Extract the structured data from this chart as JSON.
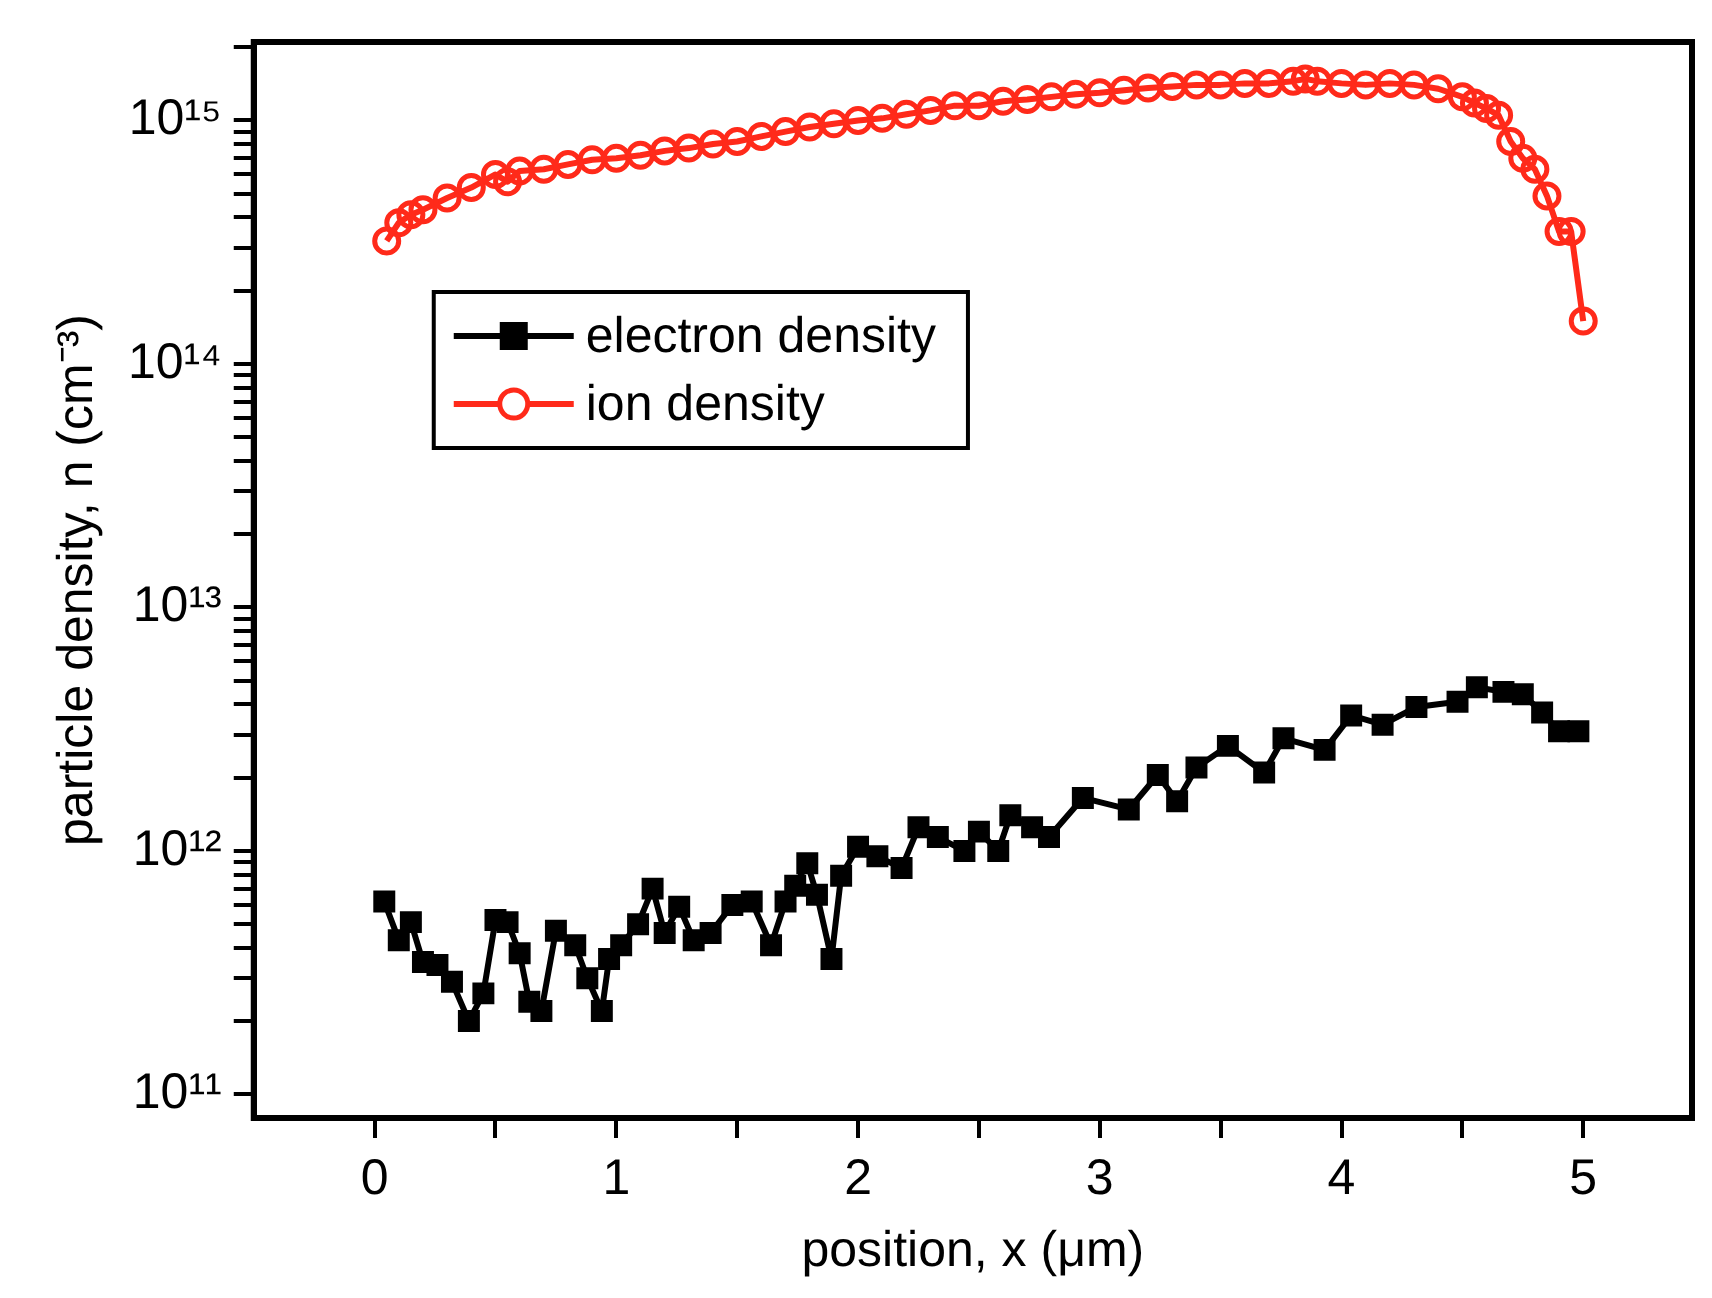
{
  "chart_data": {
    "type": "line",
    "xlabel": "position, x (μm)",
    "ylabel": "particle density, n (cm⁻³)",
    "xlim": [
      -0.5,
      5.45
    ],
    "xticks": [
      0,
      {
        "value": 0.5,
        "label": null
      },
      1,
      {
        "value": 1.5,
        "label": null
      },
      2,
      {
        "value": 2.5,
        "label": null
      },
      3,
      {
        "value": 3.5,
        "label": null
      },
      4,
      {
        "value": 4.5,
        "label": null
      },
      5
    ],
    "ylim": [
      80000000000.0,
      2100000000000000.0
    ],
    "yticks": [
      {
        "value": 100000000000.0,
        "label": "10¹¹"
      },
      {
        "value": 200000000000.0,
        "label": null
      },
      {
        "value": 300000000000.0,
        "label": null
      },
      {
        "value": 400000000000.0,
        "label": null
      },
      {
        "value": 500000000000.0,
        "label": null
      },
      {
        "value": 600000000000.0,
        "label": null
      },
      {
        "value": 700000000000.0,
        "label": null
      },
      {
        "value": 800000000000.0,
        "label": null
      },
      {
        "value": 900000000000.0,
        "label": null
      },
      {
        "value": 1000000000000.0,
        "label": "10¹²"
      },
      {
        "value": 2000000000000.0,
        "label": null
      },
      {
        "value": 3000000000000.0,
        "label": null
      },
      {
        "value": 4000000000000.0,
        "label": null
      },
      {
        "value": 5000000000000.0,
        "label": null
      },
      {
        "value": 6000000000000.0,
        "label": null
      },
      {
        "value": 7000000000000.0,
        "label": null
      },
      {
        "value": 8000000000000.0,
        "label": null
      },
      {
        "value": 9000000000000.0,
        "label": null
      },
      {
        "value": 10000000000000.0,
        "label": "10¹³"
      },
      {
        "value": 20000000000000.0,
        "label": null
      },
      {
        "value": 30000000000000.0,
        "label": null
      },
      {
        "value": 40000000000000.0,
        "label": null
      },
      {
        "value": 50000000000000.0,
        "label": null
      },
      {
        "value": 60000000000000.0,
        "label": null
      },
      {
        "value": 70000000000000.0,
        "label": null
      },
      {
        "value": 80000000000000.0,
        "label": null
      },
      {
        "value": 90000000000000.0,
        "label": null
      },
      {
        "value": 100000000000000.0,
        "label": "10¹⁴"
      },
      {
        "value": 200000000000000.0,
        "label": null
      },
      {
        "value": 300000000000000.0,
        "label": null
      },
      {
        "value": 400000000000000.0,
        "label": null
      },
      {
        "value": 500000000000000.0,
        "label": null
      },
      {
        "value": 600000000000000.0,
        "label": null
      },
      {
        "value": 700000000000000.0,
        "label": null
      },
      {
        "value": 800000000000000.0,
        "label": null
      },
      {
        "value": 900000000000000.0,
        "label": null
      },
      {
        "value": 1000000000000000.0,
        "label": "10¹⁵"
      },
      {
        "value": 2000000000000000.0,
        "label": null
      }
    ],
    "log": "y",
    "grid": false,
    "legend": "top left",
    "line_style": "solid",
    "series": [
      {
        "name": "electron density",
        "color": "#000000",
        "marker": "square",
        "x": [
          0.04,
          0.1,
          0.15,
          0.2,
          0.26,
          0.32,
          0.39,
          0.45,
          0.5,
          0.55,
          0.6,
          0.64,
          0.69,
          0.75,
          0.83,
          0.88,
          0.94,
          0.97,
          1.02,
          1.09,
          1.15,
          1.2,
          1.26,
          1.32,
          1.39,
          1.48,
          1.56,
          1.64,
          1.7,
          1.74,
          1.79,
          1.83,
          1.89,
          1.93,
          2.0,
          2.08,
          2.18,
          2.25,
          2.33,
          2.44,
          2.5,
          2.58,
          2.63,
          2.72,
          2.79,
          2.93,
          3.12,
          3.24,
          3.32,
          3.4,
          3.53,
          3.68,
          3.76,
          3.93,
          4.04,
          4.17,
          4.31,
          4.48,
          4.56,
          4.67,
          4.75,
          4.83,
          4.9,
          4.98
        ],
        "values": [
          620000000000.0,
          430000000000.0,
          510000000000.0,
          350000000000.0,
          340000000000.0,
          290000000000.0,
          200000000000.0,
          260000000000.0,
          520000000000.0,
          510000000000.0,
          380000000000.0,
          240000000000.0,
          220000000000.0,
          470000000000.0,
          410000000000.0,
          300000000000.0,
          220000000000.0,
          360000000000.0,
          410000000000.0,
          500000000000.0,
          700000000000.0,
          460000000000.0,
          590000000000.0,
          430000000000.0,
          460000000000.0,
          600000000000.0,
          620000000000.0,
          410000000000.0,
          620000000000.0,
          720000000000.0,
          890000000000.0,
          660000000000.0,
          360000000000.0,
          790000000000.0,
          1040000000000.0,
          950000000000.0,
          850000000000.0,
          1250000000000.0,
          1140000000000.0,
          1000000000000.0,
          1200000000000.0,
          1000000000000.0,
          1400000000000.0,
          1250000000000.0,
          1140000000000.0,
          1650000000000.0,
          1480000000000.0,
          2050000000000.0,
          1600000000000.0,
          2200000000000.0,
          2700000000000.0,
          2100000000000.0,
          2900000000000.0,
          2600000000000.0,
          3600000000000.0,
          3300000000000.0,
          3900000000000.0,
          4100000000000.0,
          4700000000000.0,
          4500000000000.0,
          4400000000000.0,
          3700000000000.0,
          3100000000000.0,
          3100000000000.0
        ]
      },
      {
        "name": "ion density",
        "color": "#ff2a1a",
        "marker": "circle",
        "x": [
          0.05,
          0.1,
          0.15,
          0.2,
          0.3,
          0.4,
          0.5,
          0.55,
          0.6,
          0.7,
          0.8,
          0.9,
          1.0,
          1.1,
          1.2,
          1.3,
          1.4,
          1.5,
          1.6,
          1.7,
          1.8,
          1.9,
          2.0,
          2.1,
          2.2,
          2.3,
          2.4,
          2.5,
          2.6,
          2.7,
          2.8,
          2.9,
          3.0,
          3.1,
          3.2,
          3.3,
          3.4,
          3.5,
          3.6,
          3.7,
          3.8,
          3.85,
          3.9,
          4.0,
          4.1,
          4.2,
          4.3,
          4.4,
          4.5,
          4.55,
          4.6,
          4.65,
          4.7,
          4.75,
          4.8,
          4.85,
          4.9,
          4.95,
          5.0
        ],
        "values": [
          320000000000000.0,
          380000000000000.0,
          410000000000000.0,
          430000000000000.0,
          480000000000000.0,
          530000000000000.0,
          600000000000000.0,
          560000000000000.0,
          620000000000000.0,
          630000000000000.0,
          660000000000000.0,
          690000000000000.0,
          700000000000000.0,
          720000000000000.0,
          750000000000000.0,
          770000000000000.0,
          800000000000000.0,
          820000000000000.0,
          860000000000000.0,
          900000000000000.0,
          940000000000000.0,
          970000000000000.0,
          1000000000000000.0,
          1020000000000000.0,
          1060000000000000.0,
          1100000000000000.0,
          1150000000000000.0,
          1150000000000000.0,
          1200000000000000.0,
          1220000000000000.0,
          1250000000000000.0,
          1280000000000000.0,
          1300000000000000.0,
          1330000000000000.0,
          1360000000000000.0,
          1380000000000000.0,
          1400000000000000.0,
          1400000000000000.0,
          1420000000000000.0,
          1420000000000000.0,
          1450000000000000.0,
          1480000000000000.0,
          1450000000000000.0,
          1420000000000000.0,
          1400000000000000.0,
          1420000000000000.0,
          1400000000000000.0,
          1350000000000000.0,
          1250000000000000.0,
          1180000000000000.0,
          1120000000000000.0,
          1050000000000000.0,
          820000000000000.0,
          700000000000000.0,
          630000000000000.0,
          490000000000000.0,
          350000000000000.0,
          350000000000000.0,
          150000000000000.0
        ]
      }
    ]
  }
}
